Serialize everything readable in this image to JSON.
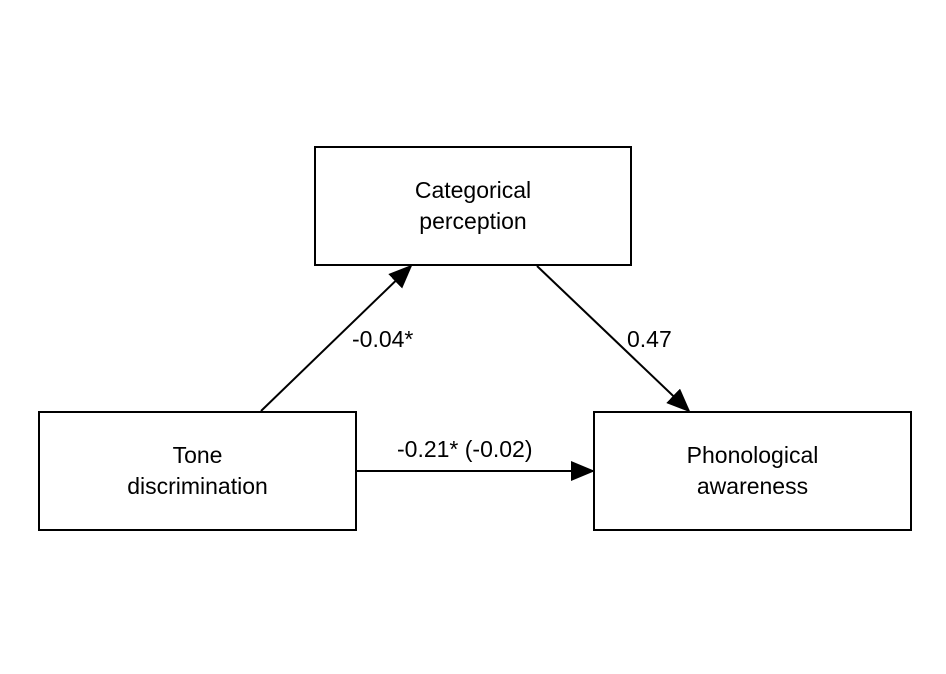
{
  "nodes": {
    "mediator": {
      "line1": "Categorical",
      "line2": "perception"
    },
    "predictor": {
      "line1": "Tone",
      "line2": "discrimination"
    },
    "outcome": {
      "line1": "Phonological",
      "line2": "awareness"
    }
  },
  "paths": {
    "a": {
      "from": "Tone discrimination",
      "to": "Categorical perception",
      "label": "-0.04*"
    },
    "b": {
      "from": "Categorical perception",
      "to": "Phonological awareness",
      "label": "0.47"
    },
    "c": {
      "from": "Tone discrimination",
      "to": "Phonological awareness",
      "label": "-0.21* (-0.02)"
    }
  },
  "colors": {
    "line": "#000000",
    "background": "#ffffff"
  }
}
